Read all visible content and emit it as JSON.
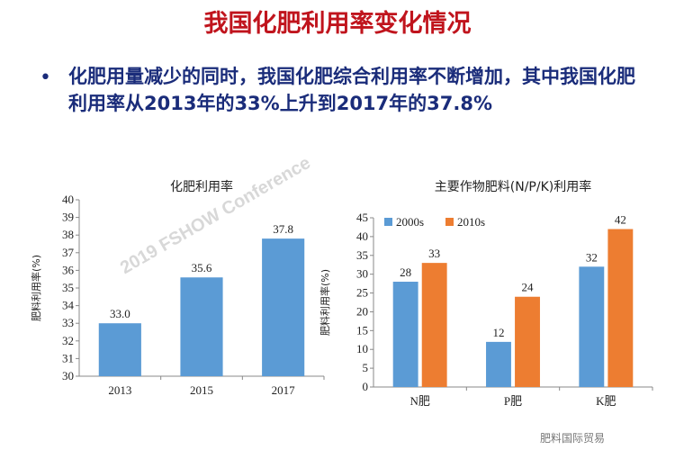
{
  "slide": {
    "title": "我国化肥利用率变化情况",
    "bullet_symbol": "•",
    "bullet_text": "化肥用量减少的同时，我国化肥综合利用率不断增加，其中我国化肥利用率从2013年的33%上升到2017年的37.8%",
    "watermark": "2019 FSHOW Conference",
    "footer": "肥料国际贸易"
  },
  "chart_data": [
    {
      "type": "bar",
      "title": "化肥利用率",
      "ylabel": "肥料利用率(%)",
      "xlabel": "",
      "categories": [
        "2013",
        "2015",
        "2017"
      ],
      "values": [
        33.0,
        35.6,
        37.8
      ],
      "data_labels": [
        "33.0",
        "35.6",
        "37.8"
      ],
      "ylim": [
        30,
        40
      ],
      "yticks": [
        30,
        31,
        32,
        33,
        34,
        35,
        36,
        37,
        38,
        39,
        40
      ],
      "colors": [
        "#5b9bd5"
      ],
      "grid": false
    },
    {
      "type": "bar",
      "title": "主要作物肥料(N/P/K)利用率",
      "ylabel": "肥料利用率(%)",
      "xlabel": "",
      "categories": [
        "N肥",
        "P肥",
        "K肥"
      ],
      "series": [
        {
          "name": "2000s",
          "values": [
            28,
            12,
            32
          ],
          "color": "#5b9bd5"
        },
        {
          "name": "2010s",
          "values": [
            33,
            24,
            42
          ],
          "color": "#ed7d31"
        }
      ],
      "ylim": [
        0,
        45
      ],
      "yticks": [
        0,
        5,
        10,
        15,
        20,
        25,
        30,
        35,
        40,
        45
      ],
      "legend": "top-left",
      "grid": false
    }
  ]
}
